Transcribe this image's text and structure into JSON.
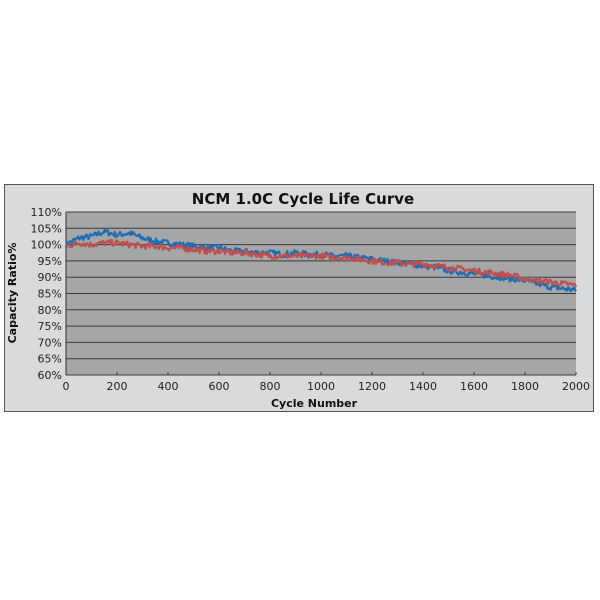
{
  "chart_data": {
    "type": "line",
    "title": "NCM 1.0C Cycle Life Curve",
    "xlabel": "Cycle Number",
    "ylabel": "Capacity Ratio%",
    "xlim": [
      0,
      2000
    ],
    "ylim": [
      60,
      110
    ],
    "xticks": [
      0,
      200,
      400,
      600,
      800,
      1000,
      1200,
      1400,
      1600,
      1800,
      2000
    ],
    "xtick_labels": [
      "0",
      "200",
      "400",
      "600",
      "800",
      "1000",
      "1200",
      "1400",
      "1600",
      "1800",
      "2000"
    ],
    "yticks": [
      60,
      65,
      70,
      75,
      80,
      85,
      90,
      95,
      100,
      105,
      110
    ],
    "ytick_labels": [
      "60%",
      "65%",
      "70%",
      "75%",
      "80%",
      "85%",
      "90%",
      "95%",
      "100%",
      "105%",
      "110%"
    ],
    "grid": true,
    "x": [
      0,
      50,
      100,
      150,
      200,
      250,
      300,
      350,
      400,
      450,
      500,
      550,
      600,
      650,
      700,
      750,
      800,
      850,
      900,
      950,
      1000,
      1050,
      1100,
      1150,
      1200,
      1250,
      1300,
      1350,
      1400,
      1450,
      1500,
      1550,
      1600,
      1650,
      1700,
      1750,
      1800,
      1850,
      1900,
      1950,
      2000
    ],
    "series": [
      {
        "name": "blue",
        "color": "#1f6db3",
        "values": [
          100,
          102,
          102.5,
          104,
          103,
          103.5,
          102,
          101,
          100.5,
          100,
          99.5,
          99,
          99,
          98,
          98,
          97.5,
          97.5,
          97,
          97.5,
          97,
          97,
          96.5,
          96.5,
          96,
          95.5,
          95,
          94.5,
          94,
          93.5,
          93,
          92,
          91.5,
          91,
          90.5,
          90,
          89.5,
          89,
          88,
          87,
          86.5,
          86
        ]
      },
      {
        "name": "red",
        "color": "#c0504d",
        "values": [
          99.5,
          100.5,
          100,
          100.5,
          100.5,
          100,
          99.5,
          99.5,
          99,
          99,
          98.5,
          98,
          98,
          97.5,
          97.5,
          97,
          96.5,
          96.5,
          96.5,
          96.5,
          96.5,
          96,
          96,
          95.5,
          95,
          94.5,
          94.5,
          94,
          94,
          93.5,
          93,
          92.5,
          92,
          91.5,
          91,
          90.5,
          89.5,
          89,
          88.5,
          88,
          87.5
        ]
      }
    ]
  }
}
